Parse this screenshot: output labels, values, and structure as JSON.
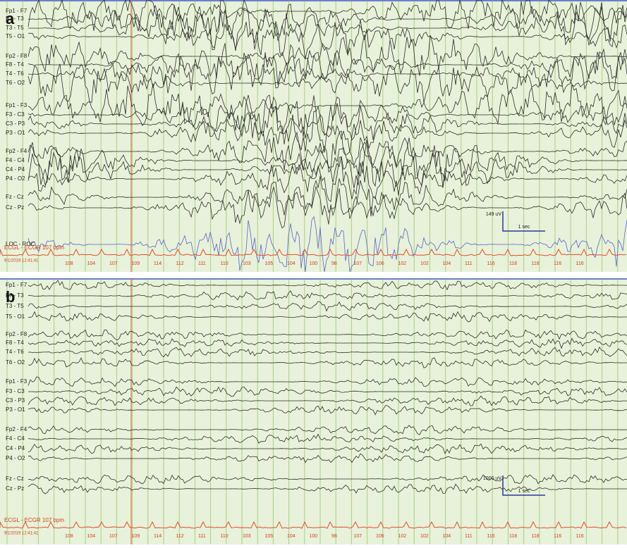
{
  "panel_a": {
    "label": "a",
    "channels": [
      "Fp1 - F7",
      "F7 - T3",
      "T3 - T5",
      "T5 - O1",
      "Fp2 - F8",
      "F8 - T4",
      "T4 - T6",
      "T6 - O2",
      "Fp1 - F3",
      "F3 - C3",
      "C3 - P3",
      "P3 - O1",
      "Fp2 - F4",
      "F4 - C4",
      "C4 - P4",
      "P4 - O2",
      "Fz - Cz",
      "Cz - Pz",
      "LOC - ROC"
    ],
    "scale_amplitude": "149 uV",
    "scale_time": "1 sec",
    "ecg_label": "ECGL - ECGR 107 bpm",
    "timestamp": "9/1/2019 12:41:41",
    "heart_rates": [
      108,
      104,
      107,
      109,
      114,
      112,
      111,
      110,
      103,
      105,
      104,
      100,
      98,
      107,
      106,
      102,
      102,
      104,
      111,
      116,
      118,
      118,
      116,
      116
    ]
  },
  "panel_b": {
    "label": "b",
    "channels": [
      "Fp1 - F7",
      "F7 - T3",
      "T3 - T5",
      "T5 - O1",
      "Fp2 - F8",
      "F8 - T4",
      "T4 - T6",
      "T6 - O2",
      "Fp1 - F3",
      "F3 - C3",
      "C3 - P3",
      "P3 - O1",
      "Fp2 - F4",
      "F4 - C4",
      "C4 - P4",
      "P4 - O2",
      "Fz - Cz",
      "Cz - Pz"
    ],
    "scale_amplitude": "1000 uV",
    "scale_time": "1 sec",
    "ecg_label": "ECGL - ECGR 107 bpm",
    "timestamp": "9/1/2019 12:41:41",
    "heart_rates": [
      108,
      104,
      107,
      109,
      114,
      112,
      111,
      110,
      103,
      105,
      104,
      100,
      98,
      107,
      106,
      102,
      102,
      104,
      111,
      116,
      118,
      118,
      116,
      116
    ]
  }
}
